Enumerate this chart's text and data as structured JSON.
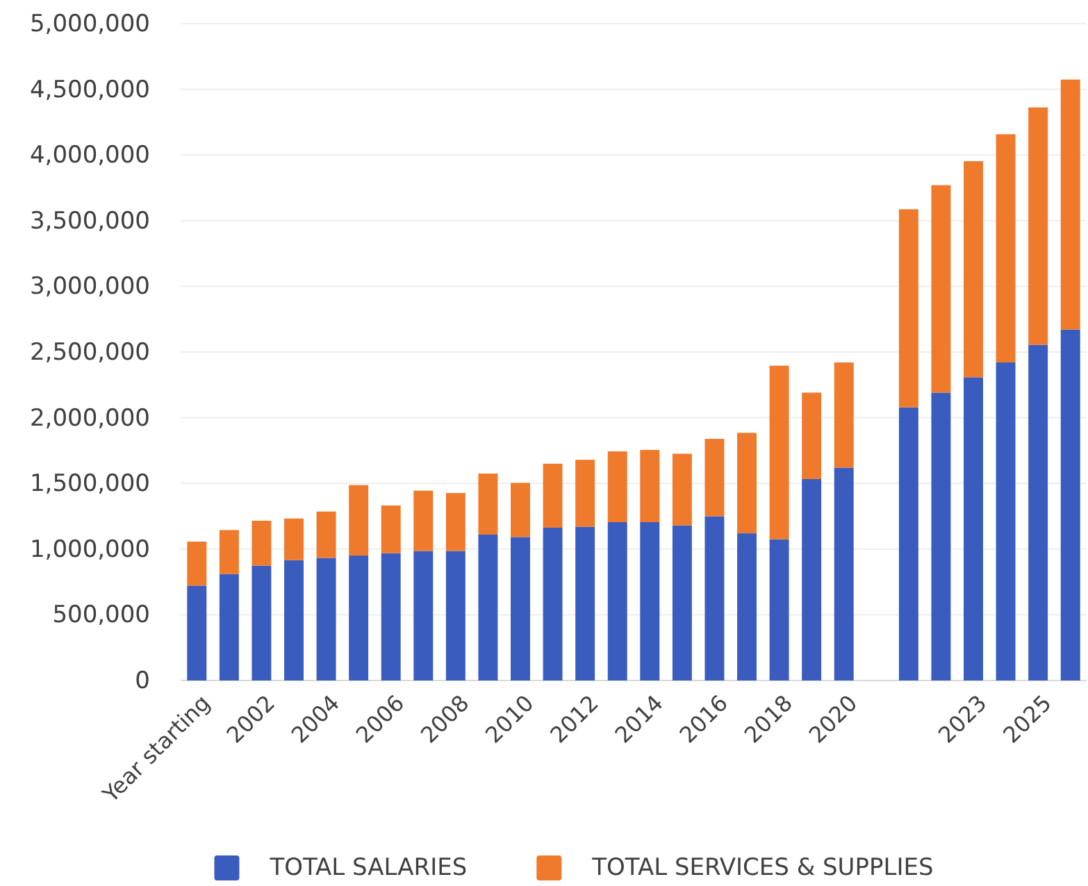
{
  "chart_data": {
    "type": "bar",
    "stacked": true,
    "categories": [
      "Year starting",
      null,
      "2002",
      null,
      "2004",
      null,
      "2006",
      null,
      "2008",
      null,
      "2010",
      null,
      "2012",
      null,
      "2014",
      null,
      "2016",
      null,
      "2018",
      null,
      "2020",
      null,
      null,
      null,
      "2023",
      null,
      "2025",
      null
    ],
    "series": [
      {
        "name": "TOTAL SALARIES",
        "color": "#3a5cbf",
        "values": [
          722000,
          810000,
          874000,
          916000,
          933000,
          951000,
          969000,
          986000,
          986000,
          1110000,
          1092000,
          1163000,
          1170000,
          1205000,
          1205000,
          1180000,
          1250000,
          1120000,
          1075000,
          1533000,
          1620000,
          null,
          2079000,
          2191000,
          2308000,
          2421000,
          2555000,
          2671000
        ]
      },
      {
        "name": "TOTAL SERVICES & SUPPLIES",
        "color": "#ef7a2c",
        "values": [
          335000,
          335000,
          342000,
          317000,
          353000,
          536000,
          363000,
          459000,
          441000,
          465000,
          412000,
          487000,
          510000,
          539000,
          550000,
          546000,
          589000,
          765000,
          1321000,
          658000,
          801000,
          null,
          1508000,
          1579000,
          1645000,
          1737000,
          1807000,
          1903000
        ]
      }
    ],
    "ylim": [
      0,
      5000000
    ],
    "yticks": [
      {
        "value": 0,
        "label": "0"
      },
      {
        "value": 500000,
        "label": "500,000"
      },
      {
        "value": 1000000,
        "label": "1,000,000"
      },
      {
        "value": 1500000,
        "label": "1,500,000"
      },
      {
        "value": 2000000,
        "label": "2,000,000"
      },
      {
        "value": 2500000,
        "label": "2,500,000"
      },
      {
        "value": 3000000,
        "label": "3,000,000"
      },
      {
        "value": 3500000,
        "label": "3,500,000"
      },
      {
        "value": 4000000,
        "label": "4,000,000"
      },
      {
        "value": 4500000,
        "label": "4,500,000"
      },
      {
        "value": 5000000,
        "label": "5,000,000"
      }
    ],
    "grid": "y",
    "legend": "bottom"
  }
}
